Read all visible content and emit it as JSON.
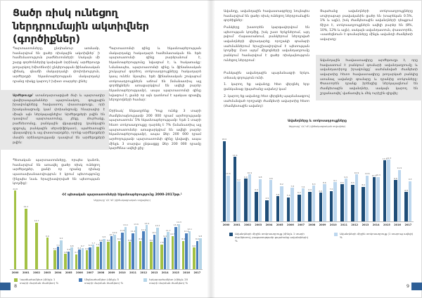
{
  "left_page": {
    "title": "Ցածր ռիսկ ունեցող ներդրումային ակտիվներ (գործիքներ)",
    "page_number": "8",
    "col1": {
      "p1": "Պարտատոմսերը, ընդհանուր առմամբ, համարվում են ցածր ռիսկային ակտիվներ՝ ի համեմատություն բաժնետոմսերի: Սակայն մի շարք գործոններից կախված (օրինակ՝ արժեթուղթ թողարկող էմիտենտի) ընկերության ֆինանսական վիճակ, գնաճի մակարդակի փոփոխություն, արժեթղթի եկամտաբերության մակարդակ) դրանց ռիսկը կարող է խիստ տարբեր լինել:",
      "highlight_lead": "Արժեթուղթ՝",
      "highlight_text": " ստանդարտացված ձևի և պարտադիր վավերապայմաններ պարունակող, գույքային իրավունքները հավաստող փաստաթուղթ, որի իրականացումը կամ փոխանցումը հնարավոր է միայն այն ներկայացնելիս: Արժեթղթերի թվին են դասվում՝ պարտատոմսը, չեկը, մուրհակը, բաժնետոմսը, բանկային վկայագիրը (բանկային գրքույկ, բանկային սերտիֆիկատ), պահեստային վկայագիրը և այլ փաստաթղթեր, որոնք արժեթղթերի մասին օրենսդրությամբ դասվում են արժեթղթերի թվին:",
      "p3": "Պետական պարտատոմսերը, որպես կանոն, համարվում են առավել ցածր ռիսկ ունեցող արժեթղթեր, քանի որ դրանց դիմաց պատասխանատվություն է կրում պետությունը (ինչպես նաև երաշխավորված են պետության կողմից):"
    },
    "col2": {
      "p1": "Պարտատոմսի գինը և եկամտաբերության մակարդակը հակադարձ համեմատական են. եթե պարտատոմսի գինը բարձրանում է, եկամտաբերությունը նվազում է, և հակառակը: Նմանապես, պարտատոմսի գինը և ֆինանսական շուկայում գործող տոկոսադրույքները հակադարձ կապ ունեն: Այսպես, եթե ֆինանսական շուկայում տոկոսադրույքներն աճում են (նմանատիպ այլ գործիքներն առաջարկվում են ավելի բարձր եկամտաբերությամբ), ապա պարտատոմսի գինը նվազում է, քանի որ այն դառնում է պակաս գրավիչ ներդրողների համար:",
      "p2": "Օրինակ՝ ենթադրենք Դուք ունեք 3 տարի ժամկետայնությամբ 200 000 դրամ արժողությամբ պարտատոմս՝ 5% եկամտաբերությամբ: Եթե 1 տարի հետո տոկոսադրույքը դարձել է 7% (նմանատիպ այլ պարտատոմսեր առաջարկվում են ավելի բարձր եկամտաբերությամբ), ապա Ձեր 200 000 դրամ արժողությամբ պարտատոմսի գինը կնվազի, ապա մինչև 3 տարվա ընթացքը Ձեր 200 000 դրամը կարժենա ավելի քիչ:"
    }
  },
  "right_page": {
    "page_number": "9",
    "col1": {
      "p1": "Ավանդը, ավանդային հավաստագրերը նույնպես համարվում են ցածր ռիսկ ունեցող ներդրումային գործիքներ:",
      "p2": "Բանկերը խստորեն կարգավորվում են պետության կողմից, իսկ շատ երկրներում, այդ թվում՝ Հայաստանում, բանկերում ներդրված ավանդների վերադարձը որոշակի գումարի սահմաններում երաշխավորվում է պետության կողմից: Ըստ այդմ՝ միջոցների ավանդադրումը բանկում համարվում է ցածր ռիսկայնություն ունեցող ներդրում:",
      "p3": "Բանկային ավանդային պայմանագրի երկու տեսակ գոյություն ունի.",
      "li1": "1. կարող եք ավանդը հետ վերցնել երբ ցանկանաք (ցպահանջ ավանդ) կամ",
      "li2": "2. կարող եք ավանդը հետ վերցնել պայմանագրով սահմանված որոշակի ժամկետի ավարտից հետո (ժամկետային ավանդ):"
    },
    "col2": {
      "p1": "Ցպահանջ ավանդների տոկոսադրույքները սովորաբար բավականին ցածր են (տարեկան 0.5%, 1% և այլն), իսկ ժամկետային ավանդների դեպքում ճիշտ է, տոկոսադրույքներն ավելի բարձր են (8%, 10%, 12% և այլն), սակայն ավանդատուն, փաստորեն, «սառեցնում» է գումարները մինչև ավանդի ժամկետի ավարտը:",
      "highlight_text": "Ավանդային հավաստագիրը արժեթուղթ է, որը հավաստում է բանկում գումարի ավանդադրումը և ավանդատիրոջ իրավունքը՝ սահմանված ժամկետի ավարտից հետո հավաստագիրը թողարկած բանկից ստանալ ավանդի գումարը և դրանից տոկոսները: Փաստորեն դրանք իրենցից ներկայացնում են ժամկետային ավանդներ, սակայն կարող են շրջանառվել՝ վաճառվել և մեկ ուրիշին զիջվել:"
    }
  },
  "chart_data": [
    {
      "type": "bar",
      "title": "ՀՀ պետական պարտատոմսերի եկամտաբերությունը 2000-2017թթ.¹",
      "subtitle": "Աղբյուրը՝ ՀՀ ԿԲ (վիճակագրական տվյալներ)",
      "categories": [
        "2000",
        "2001",
        "2002",
        "2003",
        "2004",
        "2005",
        "2006",
        "2007",
        "2008",
        "2009",
        "2010",
        "2011",
        "2012",
        "2013",
        "2014",
        "2015",
        "2016",
        "2017"
      ],
      "series": [
        {
          "name": "Կարճաժամկետ (մինչև 1 տարի մարման ժամկետ) %",
          "color": "#a3c144",
          "values": [
            24.8,
            19.2,
            14.7,
            9.9,
            6.0,
            4.8,
            4.7,
            6.0,
            7.2,
            8.6,
            8.9,
            8.6,
            8.9,
            8.6,
            7.8,
            10.5,
            8.9,
            6.8
          ]
        },
        {
          "name": "Միջնաժամկետ (մինչև 5 տարի մարման ժամկետ) %",
          "color": "#4a7ebb",
          "values": [
            null,
            null,
            null,
            null,
            7.1,
            5.6,
            6.2,
            6.9,
            8.6,
            10.4,
            11.6,
            11.4,
            11.9,
            10.9,
            9.9,
            13.4,
            11.4,
            8.9
          ]
        },
        {
          "name": "Երկարաժամկետ (մինչև 20 տարի մարման ժամկետ) %",
          "color": "#b5d5e8",
          "values": [
            null,
            null,
            null,
            null,
            9.2,
            6.8,
            6.7,
            7.7,
            9.6,
            10.9,
            13.4,
            13.6,
            13.9,
            13.2,
            11.7,
            14.3,
            12.1,
            9.8
          ]
        }
      ],
      "ylim": [
        0,
        26
      ],
      "grid": false,
      "legend_position": "bottom"
    },
    {
      "type": "bar",
      "title": "Ավանդները և տոկոսադրույքները",
      "subtitle": "Աղբյուրը՝ ՀՀ ԿԲ (վիճակագրական տվյալներ)",
      "categories": [
        "2000",
        "2001",
        "2002",
        "2003",
        "2004",
        "2005",
        "2006",
        "2007",
        "2008",
        "2009",
        "2010",
        "2011",
        "2012",
        "2013",
        "2014",
        "2015",
        "2016",
        "2017"
      ],
      "series": [
        {
          "name": "Ավանդների միջին տոկոսադրույք (մինչև 1 տարի ժամկետով, բացառությամբ ցպահանջ ավանդների) %",
          "color": "#1f4e79",
          "values": [
            18.6,
            14.9,
            9.9,
            6.9,
            4.9,
            5.8,
            5.6,
            6.2,
            6.9,
            6.6,
            7.0,
            8.6,
            8.5,
            8.0,
            10.2,
            14.1,
            9.6,
            6.8
          ]
        },
        {
          "name": "Ավանդների միջին տոկոսադրույք (1 տարուց ավելի) %",
          "color": "#bdd7ee",
          "values": [
            10.6,
            9.2,
            10.9,
            9.8,
            9.6,
            8.2,
            7.8,
            7.6,
            8.3,
            8.6,
            9.1,
            9.9,
            10.9,
            10.6,
            10.3,
            14.3,
            11.9,
            9.3
          ]
        }
      ],
      "ylim": [
        0,
        20
      ],
      "grid": false,
      "legend_position": "bottom"
    }
  ]
}
